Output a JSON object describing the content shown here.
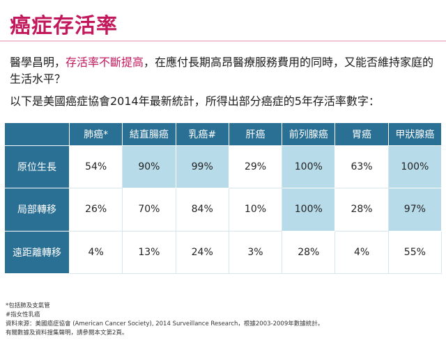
{
  "title": "癌症存活率",
  "intro": {
    "part1": "醫學昌明，",
    "highlight": "存活率不斷提高",
    "part2": "，在應付長期高昂醫療服務費用的同時，又能否維持家庭的生活水平？"
  },
  "subtitle": "以下是美國癌症協會2014年最新統計，所得出部分癌症的5年存活率數字：",
  "table": {
    "columns": [
      "肺癌*",
      "結直腸癌",
      "乳癌#",
      "肝癌",
      "前列腺癌",
      "胃癌",
      "甲狀腺癌"
    ],
    "rows": [
      {
        "label": "原位生長",
        "values": [
          "54%",
          "90%",
          "99%",
          "29%",
          "100%",
          "63%",
          "100%"
        ]
      },
      {
        "label": "局部轉移",
        "values": [
          "26%",
          "70%",
          "84%",
          "10%",
          "100%",
          "28%",
          "97%"
        ]
      },
      {
        "label": "遠距離轉移",
        "values": [
          "4%",
          "13%",
          "24%",
          "3%",
          "28%",
          "4%",
          "55%"
        ]
      }
    ]
  },
  "notes": [
    "*包括肺及支氣管",
    "#指女性乳癌",
    "資料來源：美國癌症協會 (American Cancer Society), 2014 Surveillance Research，根據2003-2009年數據統計。",
    "有關數據及資料搜集聲明，請參閱本文第2頁。"
  ]
}
